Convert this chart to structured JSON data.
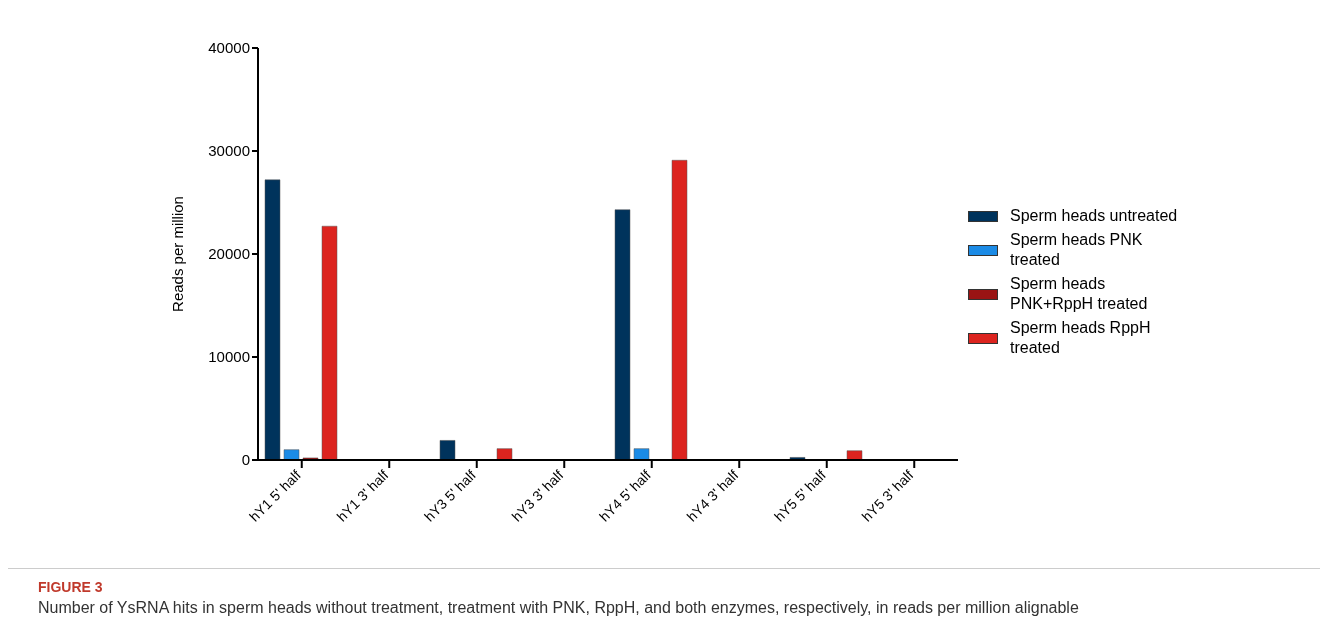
{
  "chart_data": {
    "type": "bar",
    "ylabel": "Reads per million",
    "categories": [
      "hY1 5' half",
      "hY1 3' half",
      "hY3 5' half",
      "hY3 3' half",
      "hY4 5' half",
      "hY4 3' half",
      "hY5 5' half",
      "hY5 3' half"
    ],
    "series": [
      {
        "name": "Sperm heads untreated",
        "color": "#00335c",
        "values": [
          27200,
          0,
          1900,
          0,
          24300,
          0,
          250,
          0
        ]
      },
      {
        "name": "Sperm heads PNK treated",
        "color": "#1b8be6",
        "values": [
          1000,
          0,
          0,
          0,
          1100,
          0,
          0,
          0
        ]
      },
      {
        "name": "Sperm heads PNK+RppH treated",
        "color": "#9a1414",
        "values": [
          200,
          0,
          0,
          0,
          0,
          0,
          0,
          0
        ]
      },
      {
        "name": "Sperm heads RppH treated",
        "color": "#dc241f",
        "values": [
          22700,
          0,
          1100,
          0,
          29100,
          0,
          900,
          0
        ]
      }
    ],
    "ylim": [
      0,
      40000
    ],
    "yticks": [
      0,
      10000,
      20000,
      30000,
      40000
    ],
    "grid": false,
    "legend": "right",
    "annotations": [
      "FIGURE 3",
      "Number of YsRNA hits in sperm heads without treatment, treatment with PNK, RppH, and both enzymes, respectively, in reads per million alignable"
    ]
  }
}
